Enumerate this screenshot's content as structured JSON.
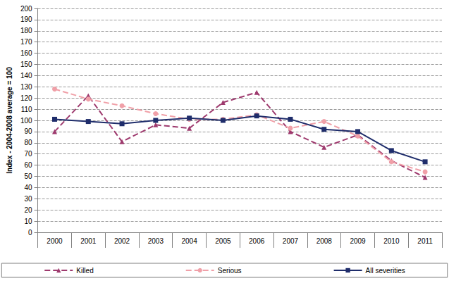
{
  "chart_data": {
    "type": "line",
    "y_label": "Index - 2004-2008 average = 100",
    "categories": [
      "2000",
      "2001",
      "2002",
      "2003",
      "2004",
      "2005",
      "2006",
      "2007",
      "2008",
      "2009",
      "2010",
      "2011"
    ],
    "series": [
      {
        "name": "Killed",
        "color": "#9e3a6e",
        "marker": "triangle",
        "line_style": "dashed",
        "values": [
          90,
          122,
          81,
          96,
          93,
          116,
          125,
          90,
          76,
          87,
          64,
          49
        ]
      },
      {
        "name": "Serious",
        "color": "#f0a0a8",
        "marker": "circle",
        "line_style": "dashed",
        "values": [
          128,
          119,
          113,
          106,
          101,
          101,
          105,
          93,
          99,
          86,
          63,
          54
        ]
      },
      {
        "name": "All severities",
        "color": "#1f2d6b",
        "marker": "square",
        "line_style": "solid",
        "values": [
          101,
          99,
          97,
          100,
          102,
          100,
          104,
          101,
          92,
          90,
          73,
          63
        ]
      }
    ],
    "ylim": [
      0,
      200
    ],
    "yticks": [
      0,
      10,
      20,
      30,
      40,
      50,
      60,
      70,
      80,
      90,
      100,
      110,
      120,
      130,
      140,
      150,
      160,
      170,
      180,
      190,
      200
    ],
    "grid": true,
    "legend": "bottom"
  }
}
